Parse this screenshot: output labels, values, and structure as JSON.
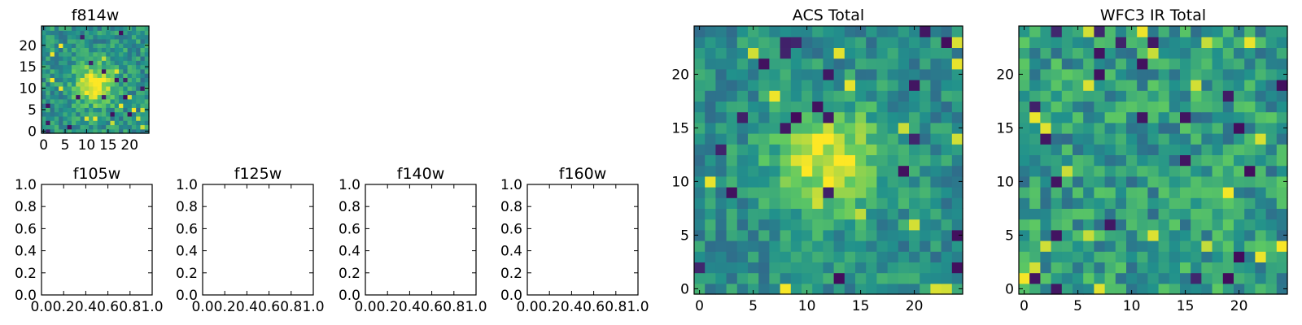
{
  "figure": {
    "background": "#ffffff",
    "colormap": "viridis",
    "colormap_stops": [
      "#440154",
      "#3b528b",
      "#21918c",
      "#5ec962",
      "#fde725"
    ]
  },
  "chart_data": [
    {
      "type": "heatmap",
      "title": "f814w",
      "grid_size": 25,
      "xlim": [
        -0.5,
        24.5
      ],
      "ylim": [
        -0.5,
        24.5
      ],
      "xticks": [
        "0",
        "5",
        "10",
        "15",
        "20"
      ],
      "xtick_values": [
        0,
        5,
        10,
        15,
        20
      ],
      "yticks": [
        "0",
        "5",
        "10",
        "15",
        "20"
      ],
      "ytick_values": [
        0,
        5,
        10,
        15,
        20
      ],
      "source": {
        "center": [
          12,
          11
        ],
        "sigma": 3.2,
        "amplitude": 0.9,
        "noise": 0.16,
        "base": 0.52,
        "seed": 814
      }
    },
    {
      "type": "empty",
      "title": "f105w",
      "xlim": [
        0,
        1
      ],
      "ylim": [
        0,
        1
      ],
      "xticks": [
        "0.0",
        "0.2",
        "0.4",
        "0.6",
        "0.8",
        "1.0"
      ],
      "xtick_values": [
        0,
        0.2,
        0.4,
        0.6,
        0.8,
        1.0
      ],
      "yticks": [
        "0.0",
        "0.2",
        "0.4",
        "0.6",
        "0.8",
        "1.0"
      ],
      "ytick_values": [
        0,
        0.2,
        0.4,
        0.6,
        0.8,
        1.0
      ]
    },
    {
      "type": "empty",
      "title": "f125w",
      "xlim": [
        0,
        1
      ],
      "ylim": [
        0,
        1
      ],
      "xticks": [
        "0.0",
        "0.2",
        "0.4",
        "0.6",
        "0.8",
        "1.0"
      ],
      "xtick_values": [
        0,
        0.2,
        0.4,
        0.6,
        0.8,
        1.0
      ],
      "yticks": [
        "0.0",
        "0.2",
        "0.4",
        "0.6",
        "0.8",
        "1.0"
      ],
      "ytick_values": [
        0,
        0.2,
        0.4,
        0.6,
        0.8,
        1.0
      ]
    },
    {
      "type": "empty",
      "title": "f140w",
      "xlim": [
        0,
        1
      ],
      "ylim": [
        0,
        1
      ],
      "xticks": [
        "0.0",
        "0.2",
        "0.4",
        "0.6",
        "0.8",
        "1.0"
      ],
      "xtick_values": [
        0,
        0.2,
        0.4,
        0.6,
        0.8,
        1.0
      ],
      "yticks": [
        "0.0",
        "0.2",
        "0.4",
        "0.6",
        "0.8",
        "1.0"
      ],
      "ytick_values": [
        0,
        0.2,
        0.4,
        0.6,
        0.8,
        1.0
      ]
    },
    {
      "type": "empty",
      "title": "f160w",
      "xlim": [
        0,
        1
      ],
      "ylim": [
        0,
        1
      ],
      "xticks": [
        "0.0",
        "0.2",
        "0.4",
        "0.6",
        "0.8",
        "1.0"
      ],
      "xtick_values": [
        0,
        0.2,
        0.4,
        0.6,
        0.8,
        1.0
      ],
      "yticks": [
        "0.0",
        "0.2",
        "0.4",
        "0.6",
        "0.8",
        "1.0"
      ],
      "ytick_values": [
        0,
        0.2,
        0.4,
        0.6,
        0.8,
        1.0
      ]
    },
    {
      "type": "heatmap",
      "title": "ACS Total",
      "grid_size": 25,
      "xlim": [
        -0.5,
        24.5
      ],
      "ylim": [
        -0.5,
        24.5
      ],
      "xticks": [
        "0",
        "5",
        "10",
        "15",
        "20"
      ],
      "xtick_values": [
        0,
        5,
        10,
        15,
        20
      ],
      "yticks": [
        "0",
        "5",
        "10",
        "15",
        "20"
      ],
      "ytick_values": [
        0,
        5,
        10,
        15,
        20
      ],
      "source": {
        "center": [
          12,
          12
        ],
        "sigma": 3.4,
        "amplitude": 0.85,
        "noise": 0.15,
        "base": 0.5,
        "seed": 606
      }
    },
    {
      "type": "heatmap",
      "title": "WFC3 IR Total",
      "grid_size": 25,
      "xlim": [
        -0.5,
        24.5
      ],
      "ylim": [
        -0.5,
        24.5
      ],
      "xticks": [
        "0",
        "5",
        "10",
        "15",
        "20"
      ],
      "xtick_values": [
        0,
        5,
        10,
        15,
        20
      ],
      "yticks": [
        "0",
        "5",
        "10",
        "15",
        "20"
      ],
      "ytick_values": [
        0,
        5,
        10,
        15,
        20
      ],
      "source": {
        "center": [
          12,
          12
        ],
        "sigma": 4.0,
        "amplitude": 0.0,
        "noise": 0.2,
        "base": 0.55,
        "seed": 3140
      }
    }
  ]
}
